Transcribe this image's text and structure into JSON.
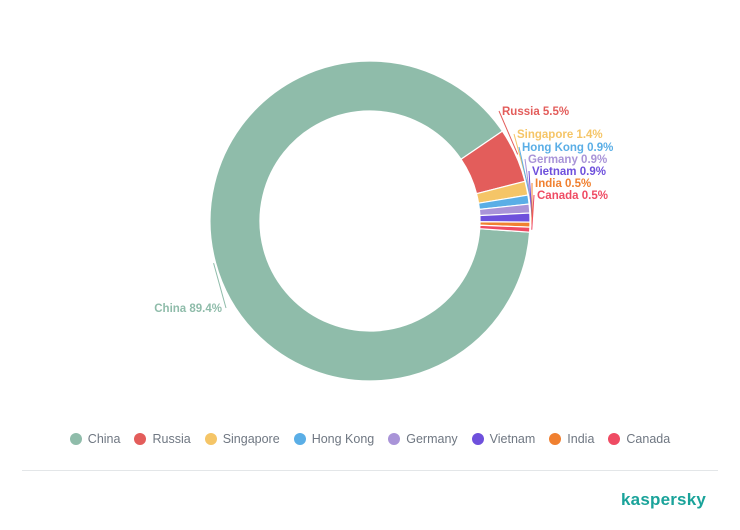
{
  "chart_data": {
    "type": "pie",
    "style": "donut",
    "categories": [
      "China",
      "Russia",
      "Singapore",
      "Hong Kong",
      "Germany",
      "Vietnam",
      "India",
      "Canada"
    ],
    "values": [
      89.4,
      5.5,
      1.4,
      0.9,
      0.9,
      0.9,
      0.5,
      0.5
    ],
    "labels": [
      "China 89.4%",
      "Russia 5.5%",
      "Singapore 1.4%",
      "Hong Kong 0.9%",
      "Germany 0.9%",
      "Vietnam 0.9%",
      "India 0.5%",
      "Canada 0.5%"
    ],
    "colors": [
      "#8fbcaa",
      "#e35d5b",
      "#f5c567",
      "#5aaee6",
      "#a994d8",
      "#6e50dc",
      "#f08030",
      "#ef4b63"
    ],
    "legend_position": "bottom",
    "title": ""
  },
  "legend": {
    "items": [
      {
        "label": "China",
        "color": "#8fbcaa"
      },
      {
        "label": "Russia",
        "color": "#e35d5b"
      },
      {
        "label": "Singapore",
        "color": "#f5c567"
      },
      {
        "label": "Hong Kong",
        "color": "#5aaee6"
      },
      {
        "label": "Germany",
        "color": "#a994d8"
      },
      {
        "label": "Vietnam",
        "color": "#6e50dc"
      },
      {
        "label": "India",
        "color": "#f08030"
      },
      {
        "label": "Canada",
        "color": "#ef4b63"
      }
    ]
  },
  "brand": {
    "name": "kaspersky",
    "color": "#1aa39a"
  }
}
